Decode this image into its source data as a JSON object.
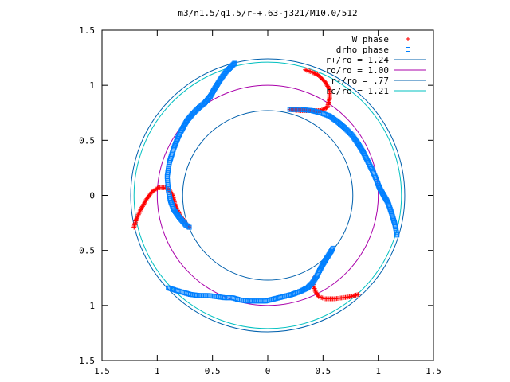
{
  "chart_data": {
    "type": "scatter",
    "title": "m3/n1.5/q1.5/r-+.63-j321/M10.0/512",
    "xlabel": "",
    "ylabel": "",
    "xlim": [
      -1.5,
      1.5
    ],
    "ylim": [
      -1.5,
      1.5
    ],
    "x_ticks": [
      -1.5,
      -1,
      -0.5,
      0,
      0.5,
      1,
      1.5
    ],
    "y_ticks": [
      -1.5,
      -1,
      -0.5,
      0,
      0.5,
      1,
      1.5
    ],
    "x_tick_labels": [
      "1.5",
      "1",
      "0.5",
      "0",
      "0.5",
      "1",
      "1.5"
    ],
    "y_tick_labels": [
      "1.5",
      "1",
      "0.5",
      "0",
      "0.5",
      "1",
      "1.5"
    ],
    "grid": false,
    "legend_position": "top-right",
    "series": [
      {
        "name": "W phase",
        "marker": "plus",
        "color": "#ff0000",
        "arms": [
          [
            [
              0.34,
              1.14
            ],
            [
              0.4,
              1.12
            ],
            [
              0.46,
              1.09
            ],
            [
              0.52,
              1.03
            ],
            [
              0.56,
              0.96
            ],
            [
              0.56,
              0.88
            ],
            [
              0.54,
              0.8
            ],
            [
              0.48,
              0.77
            ],
            [
              0.4,
              0.77
            ],
            [
              0.3,
              0.77
            ],
            [
              0.2,
              0.78
            ]
          ],
          [
            [
              -1.21,
              -0.29
            ],
            [
              -1.19,
              -0.22
            ],
            [
              -1.15,
              -0.13
            ],
            [
              -1.1,
              -0.04
            ],
            [
              -1.05,
              0.03
            ],
            [
              -0.99,
              0.07
            ],
            [
              -0.93,
              0.07
            ],
            [
              -0.89,
              0.05
            ],
            [
              -0.86,
              0.0
            ],
            [
              -0.84,
              -0.08
            ],
            [
              -0.8,
              -0.17
            ],
            [
              -0.75,
              -0.24
            ],
            [
              -0.71,
              -0.29
            ]
          ],
          [
            [
              0.82,
              -0.9
            ],
            [
              0.75,
              -0.92
            ],
            [
              0.68,
              -0.93
            ],
            [
              0.6,
              -0.94
            ],
            [
              0.52,
              -0.94
            ],
            [
              0.46,
              -0.92
            ],
            [
              0.43,
              -0.87
            ],
            [
              0.41,
              -0.81
            ],
            [
              0.42,
              -0.74
            ]
          ]
        ]
      },
      {
        "name": "drho phase",
        "marker": "square",
        "color": "#0080ff",
        "arms": [
          [
            [
              -0.3,
              1.2
            ],
            [
              -0.33,
              1.17
            ],
            [
              -0.38,
              1.12
            ],
            [
              -0.43,
              1.05
            ],
            [
              -0.48,
              0.97
            ],
            [
              -0.52,
              0.9
            ],
            [
              -0.57,
              0.84
            ],
            [
              -0.62,
              0.8
            ],
            [
              -0.68,
              0.74
            ],
            [
              -0.73,
              0.68
            ],
            [
              -0.77,
              0.61
            ],
            [
              -0.81,
              0.53
            ],
            [
              -0.85,
              0.43
            ],
            [
              -0.89,
              0.3
            ],
            [
              -0.91,
              0.17
            ],
            [
              -0.9,
              0.05
            ],
            [
              -0.88,
              -0.05
            ],
            [
              -0.85,
              -0.13
            ],
            [
              -0.8,
              -0.2
            ],
            [
              -0.74,
              -0.27
            ],
            [
              -0.71,
              -0.29
            ]
          ],
          [
            [
              0.2,
              0.78
            ],
            [
              0.3,
              0.78
            ],
            [
              0.4,
              0.77
            ],
            [
              0.48,
              0.75
            ],
            [
              0.56,
              0.72
            ],
            [
              0.63,
              0.67
            ],
            [
              0.7,
              0.61
            ],
            [
              0.76,
              0.55
            ],
            [
              0.81,
              0.48
            ],
            [
              0.86,
              0.4
            ],
            [
              0.91,
              0.3
            ],
            [
              0.95,
              0.22
            ],
            [
              0.98,
              0.15
            ],
            [
              1.01,
              0.07
            ],
            [
              1.05,
              0.0
            ],
            [
              1.09,
              -0.07
            ],
            [
              1.12,
              -0.16
            ],
            [
              1.15,
              -0.26
            ],
            [
              1.17,
              -0.36
            ]
          ],
          [
            [
              -0.9,
              -0.84
            ],
            [
              -0.84,
              -0.86
            ],
            [
              -0.77,
              -0.88
            ],
            [
              -0.7,
              -0.9
            ],
            [
              -0.62,
              -0.91
            ],
            [
              -0.54,
              -0.91
            ],
            [
              -0.46,
              -0.92
            ],
            [
              -0.39,
              -0.93
            ],
            [
              -0.32,
              -0.93
            ],
            [
              -0.25,
              -0.95
            ],
            [
              -0.18,
              -0.96
            ],
            [
              -0.1,
              -0.96
            ],
            [
              -0.02,
              -0.96
            ],
            [
              0.06,
              -0.94
            ],
            [
              0.14,
              -0.92
            ],
            [
              0.22,
              -0.9
            ],
            [
              0.3,
              -0.87
            ],
            [
              0.36,
              -0.84
            ],
            [
              0.4,
              -0.8
            ],
            [
              0.44,
              -0.74
            ],
            [
              0.48,
              -0.66
            ],
            [
              0.52,
              -0.59
            ],
            [
              0.56,
              -0.53
            ],
            [
              0.59,
              -0.48
            ]
          ]
        ]
      },
      {
        "name": "r+/ro = 1.24",
        "type": "circle",
        "radius": 1.24,
        "color": "#0060ad"
      },
      {
        "name": "ro/ro = 1.00",
        "type": "circle",
        "radius": 1.0,
        "color": "#aa00aa"
      },
      {
        "name": "r-/ro =  .77",
        "type": "circle",
        "radius": 0.77,
        "color": "#0060ad"
      },
      {
        "name": "rc/ro = 1.21",
        "type": "circle",
        "radius": 1.21,
        "color": "#00c0c0"
      }
    ]
  }
}
